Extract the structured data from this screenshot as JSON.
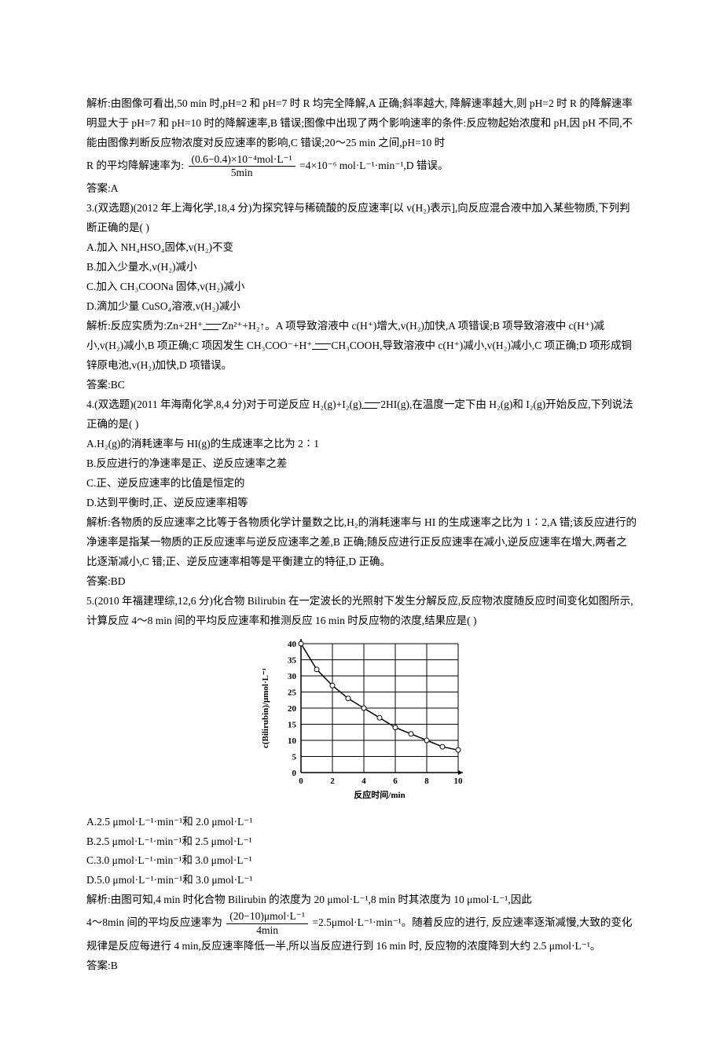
{
  "p1": "解析:由图像可看出,50 min 时,pH=2 和 pH=7 时 R 均完全降解,A 正确;斜率越大, 降解速率越大,则 pH=2 时 R 的降解速率明显大于 pH=7 和 pH=10 时的降解速率,B 错误;图像中出现了两个影响速率的条件:反应物起始浓度和 pH,因 pH 不同,不能由图像判断反应物浓度对反应速率的影响,C 错误;20～25 min 之间,pH=10 时",
  "frac1_num": "(0.6−0.4)×10⁻⁴mol·L⁻¹",
  "frac1_den": "5min",
  "p1b": "R 的平均降解速率为: ",
  "p1c": " =4×10⁻⁶ mol·L⁻¹·min⁻¹,D 错误。",
  "ans1": "答案:A",
  "q3_head": "3.(双选题)(2012 年上海化学,18,4 分)为探究锌与稀硫酸的反应速率[以 v(H₂)表示],向反应混合液中加入某些物质,下列判断正确的是(    )",
  "q3_a": "A.加入 NH₄HSO₄固体,v(H₂)不变",
  "q3_b": "B.加入少量水,v(H₂)减小",
  "q3_c": "C.加入 CH₃COONa 固体,v(H₂)减小",
  "q3_d": "D.滴加少量 CuSO₄溶液,v(H₂)减小",
  "q3_exp_a": "解析:反应实质为:Zn+2H⁺",
  "q3_exp_b": "Zn²⁺+H₂↑。A 项导致溶液中 c(H⁺)增大,v(H₂)加快,A 项错误;B 项导致溶液中 c(H⁺)减小,v(H₂)减小,B 项正确;C 项因发生 CH₃COO⁻+H⁺",
  "q3_exp_c": "CH₃COOH,导致溶液中 c(H⁺)减小,v(H₂)减小,C 项正确;D 项形成铜锌原电池,v(H₂)加快,D 项错误。",
  "ans3": "答案:BC",
  "q4_head_a": "4.(双选题)(2011 年海南化学,8,4 分)对于可逆反应 H₂(g)+I₂(g)",
  "q4_head_b": "2HI(g),在温度一定下由 H₂(g)和 I₂(g)开始反应,下列说法正确的是(    )",
  "q4_a": "A.H₂(g)的消耗速率与 HI(g)的生成速率之比为 2∶1",
  "q4_b": "B.反应进行的净速率是正、逆反应速率之差",
  "q4_c": "C.正、逆反应速率的比值是恒定的",
  "q4_d": "D.达到平衡时,正、逆反应速率相等",
  "q4_exp": "解析:各物质的反应速率之比等于各物质化学计量数之比,H₂的消耗速率与 HI 的生成速率之比为 1∶2,A 错;该反应进行的净速率是指某一物质的正反应速率与逆反应速率之差,B 正确;随反应进行正反应速率在减小,逆反应速率在增大,两者之比逐渐减小,C 错;正、逆反应速率相等是平衡建立的特征,D 正确。",
  "ans4": "答案:BD",
  "q5_head": "5.(2010 年福建理综,12,6 分)化合物 Bilirubin 在一定波长的光照射下发生分解反应,反应物浓度随反应时间变化如图所示,计算反应 4～8 min 间的平均反应速率和推测反应 16 min 时反应物的浓度,结果应是(    )",
  "chart": {
    "type": "line",
    "x_label": "反应时间/min",
    "y_label": "c(Bilirubin)/μmol·L⁻¹",
    "xlim": [
      0,
      10
    ],
    "ylim": [
      0,
      40
    ],
    "xtick_step": 2,
    "ytick_step": 5,
    "points_x": [
      0,
      1,
      2,
      3,
      4,
      5,
      6,
      7,
      8,
      9,
      10
    ],
    "points_y": [
      40,
      32,
      27,
      23,
      20,
      17,
      14,
      12,
      10,
      8,
      7
    ],
    "line_color": "#000000",
    "marker_edge": "#000000",
    "marker_fill": "#ffffff",
    "marker_radius": 3,
    "grid_color": "#000000",
    "axis_color": "#000000",
    "background_color": "#ffffff",
    "label_fontsize": 11,
    "tick_fontsize": 11,
    "line_width": 1.5
  },
  "q5_a": "A.2.5 μmol·L⁻¹·min⁻¹和 2.0 μmol·L⁻¹",
  "q5_b": "B.2.5 μmol·L⁻¹·min⁻¹和 2.5 μmol·L⁻¹",
  "q5_c": "C.3.0 μmol·L⁻¹·min⁻¹和 3.0 μmol·L⁻¹",
  "q5_d": "D.5.0 μmol·L⁻¹·min⁻¹和 3.0 μmol·L⁻¹",
  "q5_exp_a": "解析:由图可知,4 min 时化合物 Bilirubin 的浓度为 20 μmol·L⁻¹,8 min 时其浓度为 10 μmol·L⁻¹,因此",
  "q5_exp_b": "4～8min 间的平均反应速率为",
  "frac2_num": "(20−10)μmol·L⁻¹",
  "frac2_den": "4min",
  "q5_exp_c": " =2.5μmol·L⁻¹·min⁻¹。随着反应的进行, 反应速率逐渐减慢,大致的变化规律是反应每进行 4 min,反应速率降低一半,所以当反应进行到 16 min 时, 反应物的浓度降到大约 2.5 μmol·L⁻¹。",
  "ans5": "答案:B"
}
